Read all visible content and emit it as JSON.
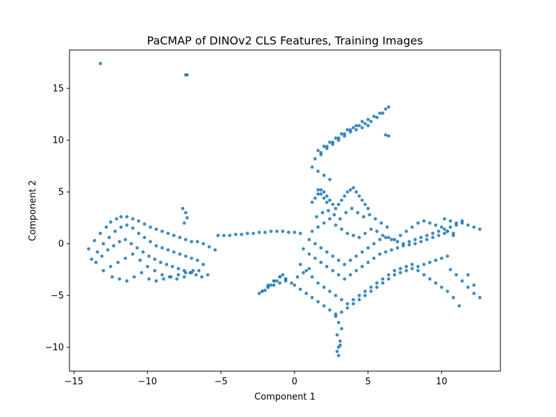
{
  "chart_data": {
    "type": "scatter",
    "title": "PaCMAP of DINOv2 CLS Features, Training Images",
    "xlabel": "Component 1",
    "ylabel": "Component 2",
    "xlim": [
      -15.3,
      14.0
    ],
    "ylim": [
      -12.3,
      18.7
    ],
    "xticks": [
      -15,
      -10,
      -5,
      0,
      5,
      10
    ],
    "yticks": [
      -10,
      -5,
      0,
      5,
      10,
      15
    ],
    "xtick_labels": [
      "−15",
      "−10",
      "−5",
      "0",
      "5",
      "10"
    ],
    "ytick_labels": [
      "−10",
      "−5",
      "0",
      "5",
      "10",
      "15"
    ],
    "grid": false,
    "legend": "none",
    "point_color": "#1f77b4",
    "series": [
      {
        "x": [
          -13.2,
          -7.4,
          -7.3,
          -14.0,
          -13.6,
          -13.2,
          -12.8,
          -12.5,
          -12.1,
          -11.8,
          -11.4,
          -11.0,
          -10.6,
          -10.2,
          -9.8,
          -9.4,
          -9.0,
          -8.6,
          -8.2,
          -7.8,
          -7.4,
          -7.0,
          -6.6,
          -6.2,
          -5.8,
          -5.4,
          -13.8,
          -13.4,
          -13.0,
          -12.6,
          -12.2,
          -11.8,
          -11.4,
          -11.0,
          -10.6,
          -10.2,
          -9.8,
          -9.4,
          -9.0,
          -8.6,
          -8.2,
          -7.8,
          -7.4,
          -7.0,
          -6.6,
          -6.2,
          -13.5,
          -13.1,
          -12.7,
          -12.3,
          -11.9,
          -11.5,
          -11.1,
          -10.7,
          -10.3,
          -9.9,
          -9.5,
          -9.1,
          -8.7,
          -8.3,
          -7.9,
          -7.5,
          -7.1,
          -6.7,
          -6.3,
          -5.9,
          -13.0,
          -12.5,
          -12.0,
          -11.5,
          -11.0,
          -10.5,
          -10.0,
          -9.5,
          -9.0,
          -8.5,
          -8.0,
          -7.5,
          -7.0,
          -6.5,
          -12.4,
          -11.9,
          -11.4,
          -10.9,
          -10.4,
          -9.9,
          -9.4,
          -8.9,
          -8.4,
          -7.9,
          -7.4,
          -6.9,
          -7.6,
          -7.4,
          -7.3,
          -7.5,
          -5.2,
          -4.8,
          -4.4,
          -4.0,
          -3.6,
          -3.2,
          -2.8,
          -2.4,
          -2.0,
          -1.6,
          -1.2,
          -0.8,
          -0.4,
          0.0,
          0.4,
          -2.2,
          -1.8,
          -1.4,
          -1.0,
          -0.6,
          -2.4,
          -2.0,
          -1.6,
          -1.2,
          -0.8,
          0.0,
          0.4,
          0.8,
          1.2,
          1.6,
          2.0,
          2.4,
          2.8,
          3.2,
          3.6,
          4.0,
          4.4,
          4.8,
          5.2,
          5.6,
          6.0,
          6.4,
          6.8,
          7.2,
          7.6,
          8.0,
          8.4,
          8.8,
          9.2,
          9.6,
          10.0,
          10.4,
          0.4,
          0.8,
          1.2,
          1.6,
          2.0,
          2.4,
          2.8,
          3.2,
          3.6,
          4.0,
          4.4,
          4.8,
          5.2,
          5.6,
          6.0,
          6.4,
          6.8,
          7.2,
          7.6,
          8.0,
          8.4,
          8.8,
          9.2,
          9.6,
          10.0,
          10.4,
          10.8,
          11.2,
          0.6,
          1.0,
          1.4,
          1.8,
          2.2,
          2.6,
          3.0,
          3.4,
          3.8,
          4.2,
          4.6,
          5.0,
          5.4,
          5.8,
          6.2,
          6.6,
          7.0,
          7.4,
          7.8,
          8.2,
          8.6,
          9.0,
          9.4,
          9.8,
          10.2,
          10.6,
          11.0,
          11.4,
          11.8,
          12.2,
          12.6,
          1.0,
          1.4,
          1.8,
          2.2,
          2.6,
          3.0,
          3.4,
          3.8,
          4.2,
          4.6,
          5.0,
          5.4,
          5.8,
          6.2,
          6.6,
          7.0,
          7.4,
          7.8,
          8.2,
          8.6,
          9.0,
          9.4,
          9.8,
          10.2,
          10.6,
          11.0,
          11.4,
          11.8,
          12.2,
          1.2,
          1.6,
          2.0,
          2.4,
          2.8,
          3.2,
          3.6,
          4.0,
          4.4,
          4.8,
          5.2,
          5.6,
          6.0,
          6.4,
          6.8,
          7.2,
          7.6,
          8.0,
          8.4,
          8.8,
          9.2,
          9.6,
          10.0,
          10.4,
          10.8,
          1.5,
          1.9,
          2.3,
          2.7,
          3.1,
          3.5,
          3.9,
          4.3,
          4.7,
          5.1,
          5.5,
          5.9,
          6.3,
          2.8,
          3.0,
          3.2,
          2.9,
          3.1,
          3.0,
          2.9,
          3.1,
          3.0,
          1.2,
          1.4,
          1.6,
          1.8,
          2.0,
          2.2,
          2.4,
          2.6,
          2.8,
          3.0,
          3.2,
          3.4,
          3.6,
          3.8,
          4.0,
          4.2,
          4.4,
          4.6,
          4.8,
          5.0,
          1.4,
          1.8,
          2.2,
          2.6,
          3.0,
          3.4,
          3.8,
          4.2,
          4.6,
          5.0,
          5.4,
          5.8,
          6.2,
          1.6,
          2.0,
          2.4,
          2.8,
          3.2,
          3.6,
          4.0,
          4.4,
          4.8,
          5.2,
          5.6,
          6.0,
          6.4,
          6.2,
          6.4,
          1.2,
          1.6,
          2.0,
          2.4,
          1.6,
          1.8,
          2.0,
          2.2,
          1.8,
          2.2,
          2.6,
          3.0,
          3.4,
          3.8,
          4.2,
          4.6,
          5.0,
          -1.8,
          -1.4,
          -1.0,
          -0.6,
          -0.2,
          0.2,
          0.6,
          1.0,
          -2.2,
          -1.8,
          -1.4,
          -1.0,
          -0.6,
          10.2,
          10.6,
          11.0,
          11.4,
          11.8,
          12.2,
          12.6,
          10.4,
          10.8
        ],
        "y": [
          17.4,
          16.3,
          16.3,
          -0.5,
          0.3,
          1.0,
          1.6,
          2.1,
          2.4,
          2.6,
          2.6,
          2.4,
          2.2,
          1.9,
          1.6,
          1.4,
          1.2,
          1.0,
          0.8,
          0.6,
          0.4,
          0.2,
          0.2,
          0.0,
          -0.3,
          -0.6,
          -1.5,
          -0.8,
          0.0,
          0.6,
          1.2,
          1.6,
          1.8,
          1.5,
          1.0,
          0.6,
          0.2,
          -0.2,
          -0.4,
          -0.6,
          -0.8,
          -1.0,
          -1.2,
          -1.4,
          -1.6,
          -2.0,
          -1.8,
          -1.2,
          -0.6,
          -0.2,
          0.2,
          0.4,
          0.0,
          -0.4,
          -0.8,
          -1.2,
          -1.5,
          -1.8,
          -2.0,
          -2.2,
          -2.4,
          -2.6,
          -2.8,
          -3.0,
          -3.2,
          -3.0,
          -2.6,
          -2.2,
          -1.8,
          -1.4,
          -1.0,
          -1.6,
          -2.2,
          -2.6,
          -3.0,
          -3.2,
          -3.4,
          -3.2,
          -2.8,
          -2.6,
          -3.2,
          -3.4,
          -3.6,
          -3.2,
          -2.8,
          -3.4,
          -3.6,
          -3.4,
          -3.2,
          -3.0,
          -2.8,
          -2.6,
          3.4,
          3.0,
          2.5,
          2.0,
          0.8,
          0.8,
          0.8,
          0.9,
          0.9,
          1.0,
          1.0,
          1.1,
          1.1,
          1.2,
          1.2,
          1.2,
          1.1,
          1.1,
          1.0,
          -4.6,
          -4.2,
          -3.6,
          -3.2,
          -3.4,
          -4.8,
          -4.5,
          -4.0,
          -3.6,
          -3.0,
          -4.0,
          -4.4,
          -4.8,
          -5.2,
          -5.6,
          -6.0,
          -6.4,
          -6.8,
          -6.6,
          -6.2,
          -5.8,
          -5.4,
          -5.0,
          -4.6,
          -4.2,
          -3.8,
          -3.4,
          -3.0,
          -2.8,
          -2.6,
          -2.4,
          -2.2,
          -2.0,
          -1.8,
          -1.6,
          -1.4,
          -1.2,
          -2.0,
          -2.6,
          -3.2,
          -3.8,
          -4.2,
          -4.6,
          -5.0,
          -5.4,
          -5.8,
          -5.4,
          -5.0,
          -4.6,
          -4.2,
          -3.8,
          -3.4,
          -3.0,
          -2.6,
          -2.4,
          -2.2,
          -2.0,
          -2.6,
          -3.0,
          -3.4,
          -3.8,
          -4.2,
          -4.6,
          -5.2,
          -6.0,
          -0.5,
          -1.0,
          -1.4,
          -1.8,
          -2.2,
          -2.6,
          -3.0,
          -3.4,
          -3.0,
          -2.6,
          -2.2,
          -1.8,
          -1.4,
          -1.0,
          -0.8,
          -0.6,
          -0.4,
          -0.2,
          -0.1,
          0.0,
          0.2,
          0.4,
          0.6,
          0.8,
          1.0,
          -2.5,
          -3.0,
          -3.6,
          -4.2,
          -4.8,
          -5.2,
          0.4,
          0.0,
          -0.4,
          -0.8,
          -1.2,
          -1.6,
          -2.0,
          -1.6,
          -1.2,
          -0.8,
          -0.4,
          0.0,
          0.4,
          0.6,
          0.4,
          0.2,
          0.0,
          0.2,
          0.4,
          0.6,
          0.8,
          1.0,
          1.2,
          1.4,
          1.6,
          1.8,
          2.0,
          -3.0,
          -4.0,
          1.2,
          1.6,
          2.0,
          2.4,
          1.8,
          1.4,
          1.0,
          0.8,
          0.6,
          1.0,
          1.4,
          1.2,
          0.8,
          0.6,
          0.4,
          0.8,
          1.2,
          1.6,
          2.0,
          2.2,
          2.0,
          1.8,
          1.6,
          1.2,
          0.8,
          2.6,
          3.0,
          3.2,
          2.8,
          2.4,
          3.0,
          3.4,
          3.0,
          2.6,
          2.8,
          2.4,
          2.0,
          1.6,
          -7.0,
          -7.6,
          -8.2,
          -8.8,
          -9.4,
          -10.0,
          -10.4,
          -9.8,
          -10.8,
          4.0,
          4.4,
          4.8,
          5.2,
          5.0,
          4.6,
          4.2,
          3.8,
          3.4,
          3.8,
          4.2,
          4.6,
          5.0,
          5.2,
          5.4,
          5.0,
          4.6,
          4.2,
          3.8,
          3.4,
          8.2,
          8.8,
          9.4,
          9.8,
          10.2,
          10.6,
          11.0,
          11.4,
          11.8,
          12.0,
          12.3,
          12.6,
          13.0,
          9.0,
          9.4,
          9.8,
          10.2,
          10.6,
          11.0,
          11.2,
          11.4,
          11.6,
          11.8,
          12.2,
          12.6,
          13.2,
          10.5,
          10.4,
          7.4,
          7.0,
          6.6,
          6.2,
          5.2,
          4.8,
          4.4,
          4.0,
          8.6,
          9.2,
          9.6,
          10.0,
          10.4,
          10.8,
          11.0,
          11.2,
          11.4,
          -4.0,
          -3.6,
          -3.2,
          -3.4,
          -3.8,
          -3.2,
          -2.8,
          -2.4,
          -4.6,
          -4.2,
          -4.0,
          -3.8,
          -3.6,
          2.4,
          2.2,
          2.0,
          2.2,
          1.8,
          1.6,
          1.4,
          1.2,
          1.0
        ]
      }
    ]
  }
}
